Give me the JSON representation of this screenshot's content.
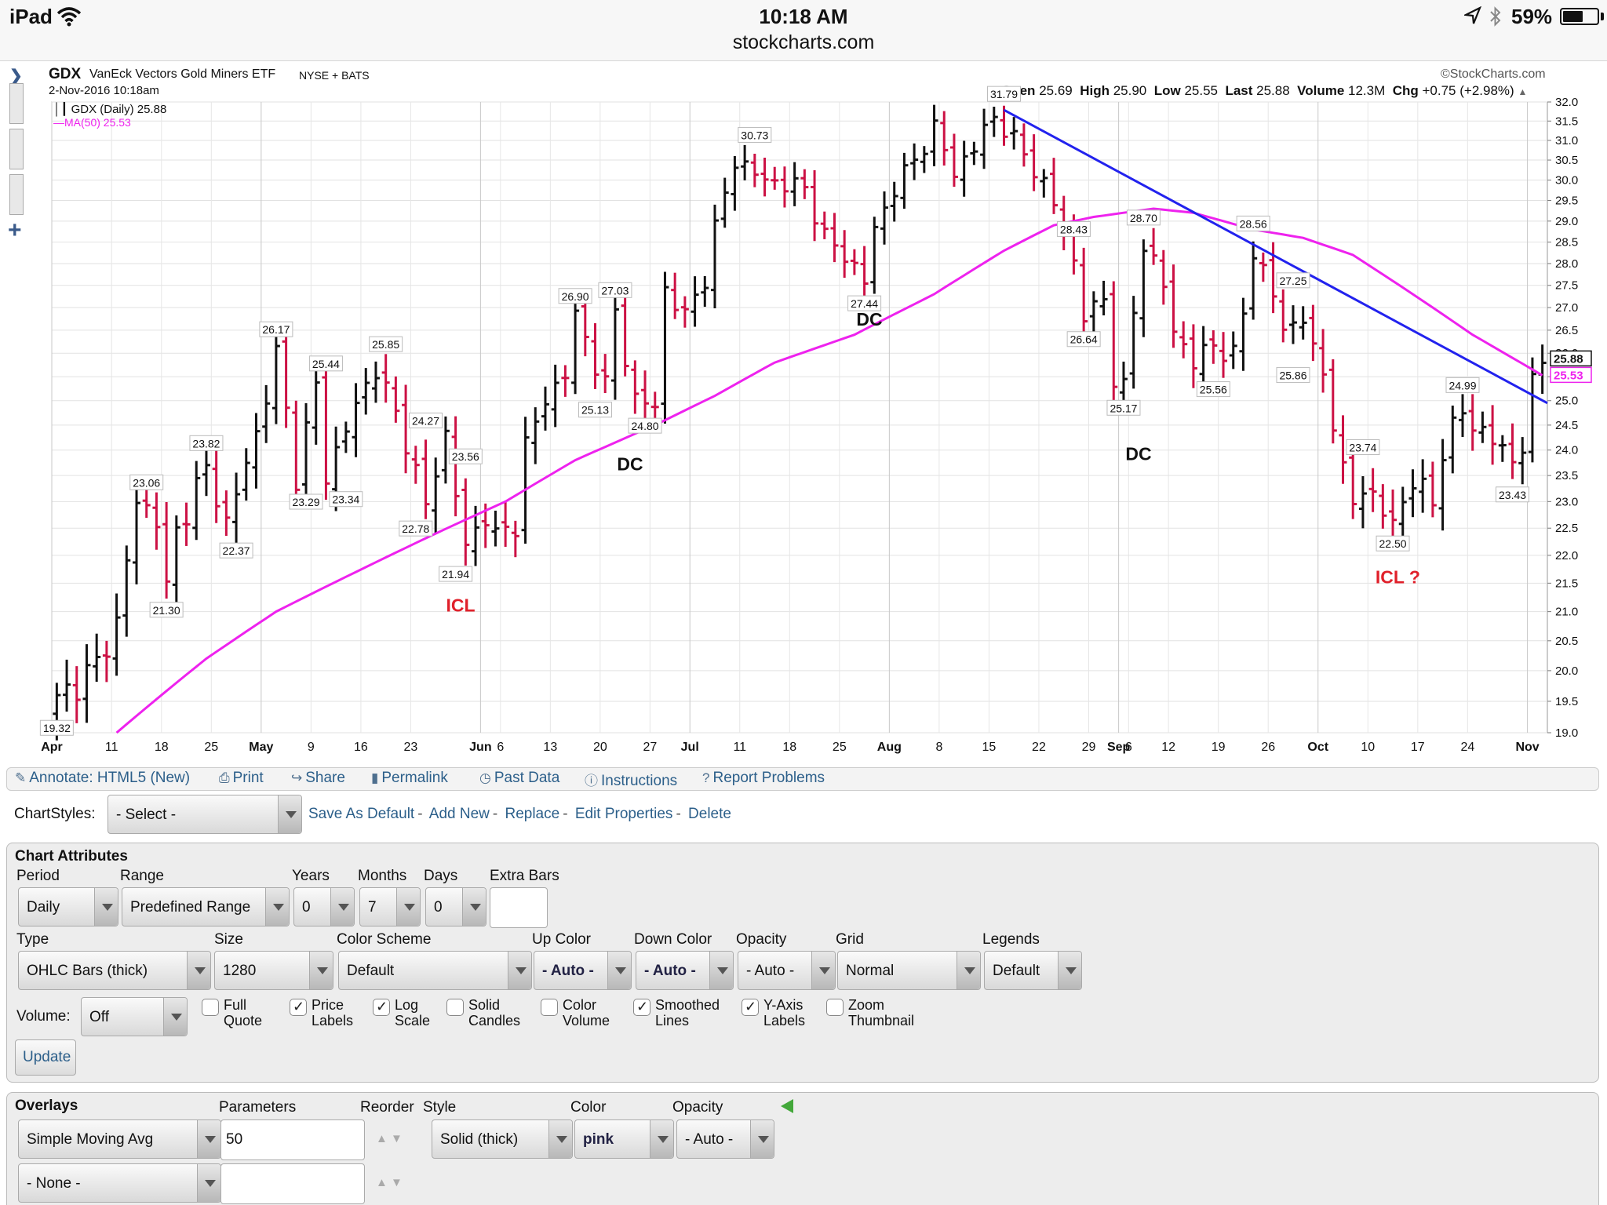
{
  "status_bar": {
    "device": "iPad",
    "time": "10:18 AM",
    "url": "stockcharts.com",
    "battery": "59%",
    "battery_level": 0.59
  },
  "header": {
    "symbol": "GDX",
    "name": "VanEck Vectors Gold Miners ETF",
    "exchange": "NYSE + BATS",
    "date": "2-Nov-2016 10:18am",
    "brand": "©StockCharts.com",
    "ohlc": {
      "open_label": "Open",
      "open": "25.69",
      "high_label": "High",
      "high": "25.90",
      "low_label": "Low",
      "low": "25.55",
      "last_label": "Last",
      "last": "25.88",
      "volume_label": "Volume",
      "volume": "12.3M",
      "chg_label": "Chg",
      "chg": "+0.75 (+2.98%)"
    }
  },
  "chart_data": {
    "type": "ohlc",
    "price_legend": "GDX (Daily) 25.88",
    "ma_legend": "MA(50) 25.53",
    "ma_color": "#ee22ee",
    "trendline_color": "#2222ee",
    "up_color": "#111111",
    "down_color": "#cc1144",
    "ylim": [
      19.0,
      32.0
    ],
    "y_ticks": [
      "19.0",
      "19.5",
      "20.0",
      "20.5",
      "21.0",
      "21.5",
      "22.0",
      "22.5",
      "23.0",
      "23.5",
      "24.0",
      "24.5",
      "25.0",
      "25.5",
      "26.0",
      "26.5",
      "27.0",
      "27.5",
      "28.0",
      "28.5",
      "29.0",
      "29.5",
      "30.0",
      "30.5",
      "31.0",
      "31.5",
      "32.0"
    ],
    "x_ticks": [
      {
        "label": "Apr",
        "bold": true,
        "i": 0
      },
      {
        "label": "11",
        "i": 6
      },
      {
        "label": "18",
        "i": 11
      },
      {
        "label": "25",
        "i": 16
      },
      {
        "label": "May",
        "bold": true,
        "i": 21
      },
      {
        "label": "9",
        "i": 26
      },
      {
        "label": "16",
        "i": 31
      },
      {
        "label": "23",
        "i": 36
      },
      {
        "label": "Jun",
        "bold": true,
        "i": 43
      },
      {
        "label": "6",
        "i": 45
      },
      {
        "label": "13",
        "i": 50
      },
      {
        "label": "20",
        "i": 55
      },
      {
        "label": "27",
        "i": 60
      },
      {
        "label": "Jul",
        "bold": true,
        "i": 64
      },
      {
        "label": "11",
        "i": 69
      },
      {
        "label": "18",
        "i": 74
      },
      {
        "label": "25",
        "i": 79
      },
      {
        "label": "Aug",
        "bold": true,
        "i": 84
      },
      {
        "label": "8",
        "i": 89
      },
      {
        "label": "15",
        "i": 94
      },
      {
        "label": "22",
        "i": 99
      },
      {
        "label": "29",
        "i": 104
      },
      {
        "label": "Sep",
        "bold": true,
        "i": 107
      },
      {
        "label": "6",
        "i": 108
      },
      {
        "label": "12",
        "i": 112
      },
      {
        "label": "19",
        "i": 117
      },
      {
        "label": "26",
        "i": 122
      },
      {
        "label": "Oct",
        "bold": true,
        "i": 127
      },
      {
        "label": "10",
        "i": 132
      },
      {
        "label": "17",
        "i": 137
      },
      {
        "label": "24",
        "i": 142
      },
      {
        "label": "Nov",
        "bold": true,
        "i": 148
      }
    ],
    "anchors": [
      [
        0,
        19.5
      ],
      [
        4,
        20.1
      ],
      [
        6,
        20.8
      ],
      [
        8,
        23.0
      ],
      [
        10,
        22.7
      ],
      [
        11,
        21.4
      ],
      [
        12,
        22.4
      ],
      [
        14,
        23.3
      ],
      [
        15,
        23.6
      ],
      [
        17,
        22.6
      ],
      [
        20,
        24.3
      ],
      [
        22,
        26.0
      ],
      [
        24,
        23.5
      ],
      [
        26,
        25.3
      ],
      [
        27,
        23.5
      ],
      [
        30,
        24.9
      ],
      [
        32,
        25.7
      ],
      [
        35,
        24.2
      ],
      [
        37,
        22.9
      ],
      [
        39,
        24.3
      ],
      [
        41,
        22.1
      ],
      [
        43,
        22.8
      ],
      [
        44,
        22.3
      ],
      [
        46,
        22.6
      ],
      [
        47,
        24.1
      ],
      [
        49,
        25.0
      ],
      [
        51,
        25.6
      ],
      [
        52,
        26.8
      ],
      [
        55,
        25.3
      ],
      [
        56,
        26.9
      ],
      [
        58,
        25.0
      ],
      [
        60,
        24.9
      ],
      [
        61,
        27.4
      ],
      [
        63,
        26.8
      ],
      [
        65,
        27.7
      ],
      [
        66,
        28.8
      ],
      [
        68,
        30.5
      ],
      [
        71,
        30.0
      ],
      [
        75,
        29.8
      ],
      [
        77,
        28.6
      ],
      [
        79,
        28.2
      ],
      [
        81,
        27.6
      ],
      [
        82,
        28.8
      ],
      [
        84,
        29.8
      ],
      [
        86,
        30.5
      ],
      [
        88,
        31.3
      ],
      [
        90,
        30.2
      ],
      [
        92,
        30.8
      ],
      [
        93,
        31.3
      ],
      [
        94,
        31.6
      ],
      [
        96,
        31.0
      ],
      [
        98,
        30.3
      ],
      [
        100,
        29.4
      ],
      [
        101,
        28.8
      ],
      [
        102,
        28.0
      ],
      [
        103,
        26.8
      ],
      [
        105,
        27.2
      ],
      [
        106,
        25.5
      ],
      [
        107,
        25.2
      ],
      [
        108,
        26.9
      ],
      [
        109,
        28.5
      ],
      [
        111,
        27.5
      ],
      [
        112,
        26.5
      ],
      [
        114,
        25.8
      ],
      [
        116,
        26.2
      ],
      [
        118,
        25.9
      ],
      [
        119,
        26.9
      ],
      [
        120,
        28.3
      ],
      [
        122,
        27.3
      ],
      [
        123,
        26.5
      ],
      [
        125,
        26.8
      ],
      [
        126,
        26.0
      ],
      [
        127,
        25.6
      ],
      [
        128,
        24.6
      ],
      [
        129,
        23.5
      ],
      [
        130,
        23.0
      ],
      [
        131,
        23.3
      ],
      [
        133,
        22.8
      ],
      [
        134,
        22.6
      ],
      [
        136,
        23.4
      ],
      [
        138,
        23.0
      ],
      [
        139,
        24.0
      ],
      [
        141,
        24.8
      ],
      [
        142,
        24.5
      ],
      [
        144,
        24.2
      ],
      [
        146,
        23.8
      ],
      [
        147,
        24.1
      ],
      [
        148,
        25.3
      ],
      [
        149,
        25.88
      ]
    ],
    "ma_anchors": [
      [
        6,
        19.0
      ],
      [
        15,
        20.2
      ],
      [
        22,
        21.0
      ],
      [
        30,
        21.7
      ],
      [
        38,
        22.4
      ],
      [
        45,
        23.0
      ],
      [
        52,
        23.8
      ],
      [
        60,
        24.5
      ],
      [
        66,
        25.1
      ],
      [
        72,
        25.8
      ],
      [
        80,
        26.4
      ],
      [
        88,
        27.3
      ],
      [
        95,
        28.3
      ],
      [
        100,
        28.9
      ],
      [
        104,
        29.1
      ],
      [
        110,
        29.3
      ],
      [
        114,
        29.2
      ],
      [
        120,
        28.8
      ],
      [
        125,
        28.6
      ],
      [
        130,
        28.2
      ],
      [
        134,
        27.6
      ],
      [
        138,
        27.0
      ],
      [
        142,
        26.4
      ],
      [
        146,
        25.9
      ],
      [
        149,
        25.53
      ]
    ],
    "trendline": {
      "from": [
        95,
        31.79
      ],
      "to": [
        152,
        24.95
      ]
    },
    "price_labels": [
      {
        "text": "19.32",
        "i": 0,
        "v": 19.32,
        "pos": "below"
      },
      {
        "text": "23.06",
        "i": 9,
        "v": 23.06,
        "pos": "above"
      },
      {
        "text": "21.30",
        "i": 11,
        "v": 21.3,
        "pos": "below"
      },
      {
        "text": "23.82",
        "i": 15,
        "v": 23.82,
        "pos": "above"
      },
      {
        "text": "22.37",
        "i": 18,
        "v": 22.37,
        "pos": "below"
      },
      {
        "text": "26.17",
        "i": 22,
        "v": 26.17,
        "pos": "above"
      },
      {
        "text": "23.29",
        "i": 25,
        "v": 23.29,
        "pos": "below"
      },
      {
        "text": "25.44",
        "i": 27,
        "v": 25.44,
        "pos": "above"
      },
      {
        "text": "23.34",
        "i": 29,
        "v": 23.34,
        "pos": "below"
      },
      {
        "text": "25.85",
        "i": 33,
        "v": 25.85,
        "pos": "above"
      },
      {
        "text": "24.27",
        "i": 37,
        "v": 24.27,
        "pos": "above"
      },
      {
        "text": "22.78",
        "i": 36,
        "v": 22.78,
        "pos": "below"
      },
      {
        "text": "21.94",
        "i": 40,
        "v": 21.94,
        "pos": "below"
      },
      {
        "text": "23.56",
        "i": 41,
        "v": 23.56,
        "pos": "above"
      },
      {
        "text": "26.90",
        "i": 52,
        "v": 26.9,
        "pos": "above"
      },
      {
        "text": "25.13",
        "i": 54,
        "v": 25.13,
        "pos": "below"
      },
      {
        "text": "27.03",
        "i": 56,
        "v": 27.03,
        "pos": "above"
      },
      {
        "text": "24.80",
        "i": 59,
        "v": 24.8,
        "pos": "below"
      },
      {
        "text": "30.73",
        "i": 70,
        "v": 30.73,
        "pos": "above"
      },
      {
        "text": "27.44",
        "i": 81,
        "v": 27.44,
        "pos": "below"
      },
      {
        "text": "31.79",
        "i": 95,
        "v": 31.79,
        "pos": "above"
      },
      {
        "text": "28.43",
        "i": 102,
        "v": 28.43,
        "pos": "above"
      },
      {
        "text": "26.64",
        "i": 103,
        "v": 26.64,
        "pos": "below"
      },
      {
        "text": "28.70",
        "i": 109,
        "v": 28.7,
        "pos": "above"
      },
      {
        "text": "25.17",
        "i": 107,
        "v": 25.17,
        "pos": "below"
      },
      {
        "text": "28.56",
        "i": 120,
        "v": 28.56,
        "pos": "above"
      },
      {
        "text": "25.56",
        "i": 116,
        "v": 25.56,
        "pos": "below"
      },
      {
        "text": "27.25",
        "i": 124,
        "v": 27.25,
        "pos": "above"
      },
      {
        "text": "25.86",
        "i": 124,
        "v": 25.86,
        "pos": "below"
      },
      {
        "text": "23.74",
        "i": 131,
        "v": 23.74,
        "pos": "above"
      },
      {
        "text": "22.50",
        "i": 134,
        "v": 22.5,
        "pos": "below"
      },
      {
        "text": "24.99",
        "i": 141,
        "v": 24.99,
        "pos": "above"
      },
      {
        "text": "23.43",
        "i": 146,
        "v": 23.43,
        "pos": "below"
      }
    ],
    "annotations": [
      {
        "text": "ICL",
        "color": "#e0202a",
        "i": 40.5,
        "v": 21.0
      },
      {
        "text": "DC",
        "color": "#111111",
        "i": 57.5,
        "v": 23.6
      },
      {
        "text": "DC",
        "color": "#111111",
        "i": 81.5,
        "v": 26.6
      },
      {
        "text": "DC",
        "color": "#111111",
        "i": 108.5,
        "v": 23.8
      },
      {
        "text": "ICL ?",
        "color": "#e0202a",
        "i": 134.5,
        "v": 21.5
      }
    ],
    "y_axis_markers": [
      {
        "text": "25.88",
        "v": 25.88,
        "color": "#111111"
      },
      {
        "text": "25.53",
        "v": 25.53,
        "color": "#ee22ee"
      }
    ]
  },
  "links": [
    "Annotate: HTML5 (New)",
    "Print",
    "Share",
    "Permalink",
    "Past Data",
    "Instructions",
    "Report Problems"
  ],
  "chartstyles": {
    "label": "ChartStyles:",
    "select": "- Select -",
    "actions": [
      "Save As Default",
      "Add New",
      "Replace",
      "Edit Properties",
      "Delete"
    ]
  },
  "attributes": {
    "title": "Chart Attributes",
    "period_label": "Period",
    "period": "Daily",
    "range_label": "Range",
    "range": "Predefined Range",
    "years_label": "Years",
    "years": "0",
    "months_label": "Months",
    "months": "7",
    "days_label": "Days",
    "days": "0",
    "extra_label": "Extra Bars",
    "extra": "",
    "type_label": "Type",
    "type": "OHLC Bars (thick)",
    "size_label": "Size",
    "size": "1280",
    "scheme_label": "Color Scheme",
    "scheme": "Default",
    "upcolor_label": "Up Color",
    "upcolor": "- Auto -",
    "downcolor_label": "Down Color",
    "downcolor": "- Auto -",
    "opacity_label": "Opacity",
    "opacity": "- Auto -",
    "grid_label": "Grid",
    "grid": "Normal",
    "legends_label": "Legends",
    "legends": "Default",
    "volume_label": "Volume:",
    "volume": "Off",
    "checkboxes": [
      {
        "l1": "Full",
        "l2": "Quote",
        "checked": false
      },
      {
        "l1": "Price",
        "l2": "Labels",
        "checked": true
      },
      {
        "l1": "Log",
        "l2": "Scale",
        "checked": true
      },
      {
        "l1": "Solid",
        "l2": "Candles",
        "checked": false
      },
      {
        "l1": "Color",
        "l2": "Volume",
        "checked": false
      },
      {
        "l1": "Smoothed",
        "l2": "Lines",
        "checked": true
      },
      {
        "l1": "Y-Axis",
        "l2": "Labels",
        "checked": true
      },
      {
        "l1": "Zoom",
        "l2": "Thumbnail",
        "checked": false
      }
    ],
    "update": "Update"
  },
  "overlays": {
    "title": "Overlays",
    "parameters_label": "Parameters",
    "reorder_label": "Reorder",
    "style_label": "Style",
    "color_label": "Color",
    "opacity_label": "Opacity",
    "rows": [
      {
        "type": "Simple Moving Avg",
        "params": "50",
        "style": "Solid (thick)",
        "color": "pink",
        "opacity": "- Auto -"
      },
      {
        "type": "- None -",
        "params": ""
      }
    ]
  }
}
